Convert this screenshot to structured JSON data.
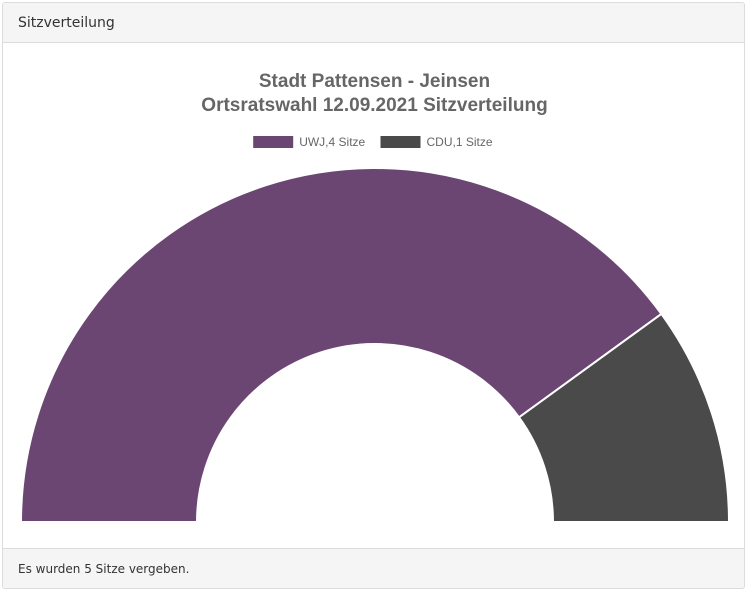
{
  "panel": {
    "header_title": "Sitzverteilung",
    "footer_text": "Es wurden 5 Sitze vergeben."
  },
  "chart_data": {
    "type": "pie",
    "variant": "half-doughnut",
    "title_line1": "Stadt Pattensen - Jeinsen",
    "title_line2": "Ortsratswahl 12.09.2021 Sitzverteilung",
    "legend_placement": "top",
    "categories": [
      "UWJ",
      "CDU"
    ],
    "values": [
      4,
      1
    ],
    "legend_labels": [
      "UWJ,4 Sitze",
      "CDU,1 Sitze"
    ],
    "colors": [
      "#6b4673",
      "#4a4a4a"
    ],
    "total_seats": 5
  }
}
